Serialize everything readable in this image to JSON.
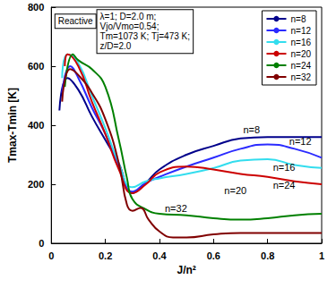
{
  "chart_data": {
    "type": "line",
    "x_label": "J/n²",
    "y_label": "Tmax-Tmin [K]",
    "xlim": [
      0,
      1
    ],
    "xticks": [
      0,
      0.2,
      0.4,
      0.6,
      0.8,
      1
    ],
    "ylim": [
      0,
      800
    ],
    "yticks": [
      0,
      200,
      400,
      600,
      800
    ],
    "grid": false,
    "legend": "upper right",
    "series": [
      {
        "name": "n=8",
        "color": "#00008b",
        "x": [
          0.03,
          0.06,
          0.1,
          0.15,
          0.2,
          0.25,
          0.3,
          0.35,
          0.4,
          0.5,
          0.6,
          0.7,
          0.8,
          0.9,
          1.0
        ],
        "values": [
          450,
          560,
          520,
          430,
          350,
          270,
          170,
          205,
          250,
          300,
          330,
          355,
          360,
          360,
          360
        ]
      },
      {
        "name": "n=12",
        "color": "#2b2bff",
        "x": [
          0.04,
          0.07,
          0.1,
          0.15,
          0.2,
          0.25,
          0.3,
          0.35,
          0.4,
          0.5,
          0.6,
          0.7,
          0.8,
          0.9,
          1.0
        ],
        "values": [
          510,
          600,
          560,
          460,
          370,
          260,
          175,
          205,
          225,
          260,
          290,
          320,
          335,
          320,
          290
        ]
      },
      {
        "name": "n=16",
        "color": "#33ddee",
        "x": [
          0.04,
          0.06,
          0.1,
          0.15,
          0.2,
          0.25,
          0.3,
          0.35,
          0.4,
          0.5,
          0.6,
          0.7,
          0.8,
          0.9,
          1.0
        ],
        "values": [
          560,
          640,
          610,
          500,
          390,
          270,
          190,
          210,
          220,
          235,
          255,
          280,
          285,
          265,
          255
        ]
      },
      {
        "name": "n=20",
        "color": "#cc0000",
        "x": [
          0.05,
          0.06,
          0.1,
          0.15,
          0.2,
          0.25,
          0.3,
          0.35,
          0.4,
          0.5,
          0.6,
          0.7,
          0.8,
          0.9,
          1.0
        ],
        "values": [
          600,
          640,
          600,
          480,
          370,
          250,
          170,
          200,
          240,
          260,
          250,
          235,
          225,
          210,
          200
        ]
      },
      {
        "name": "n=24",
        "color": "#008000",
        "x": [
          0.05,
          0.08,
          0.1,
          0.15,
          0.2,
          0.25,
          0.28,
          0.3,
          0.35,
          0.4,
          0.5,
          0.6,
          0.7,
          0.8,
          0.9,
          1.0
        ],
        "values": [
          530,
          640,
          620,
          590,
          530,
          350,
          220,
          150,
          115,
          100,
          95,
          85,
          80,
          85,
          95,
          100
        ]
      },
      {
        "name": "n=32",
        "color": "#800000",
        "x": [
          0.04,
          0.07,
          0.1,
          0.15,
          0.2,
          0.25,
          0.28,
          0.3,
          0.33,
          0.36,
          0.4,
          0.45,
          0.5,
          0.6,
          0.7,
          0.8,
          0.9,
          1.0
        ],
        "values": [
          480,
          590,
          570,
          510,
          420,
          270,
          130,
          110,
          120,
          80,
          40,
          20,
          20,
          30,
          35,
          35,
          35,
          35
        ]
      }
    ],
    "boxes": [
      {
        "text": [
          "Reactive"
        ],
        "x": 0.015,
        "y": 775
      },
      {
        "text": [
          "λ=1; D=2.0 m;",
          "Vjo/Vmo=0.54;",
          "Tm=1073 K; Tj=473 K;",
          "z/D=2.0"
        ],
        "x": 0.17,
        "y": 790
      }
    ],
    "annotations": [
      {
        "text": "n=8",
        "x": 0.71,
        "y": 385
      },
      {
        "text": "n=12",
        "x": 0.88,
        "y": 345
      },
      {
        "text": "n=16",
        "x": 0.82,
        "y": 258
      },
      {
        "text": "n=20",
        "x": 0.64,
        "y": 178
      },
      {
        "text": "n=24",
        "x": 0.82,
        "y": 198
      },
      {
        "text": "n=32",
        "x": 0.42,
        "y": 118
      }
    ]
  }
}
